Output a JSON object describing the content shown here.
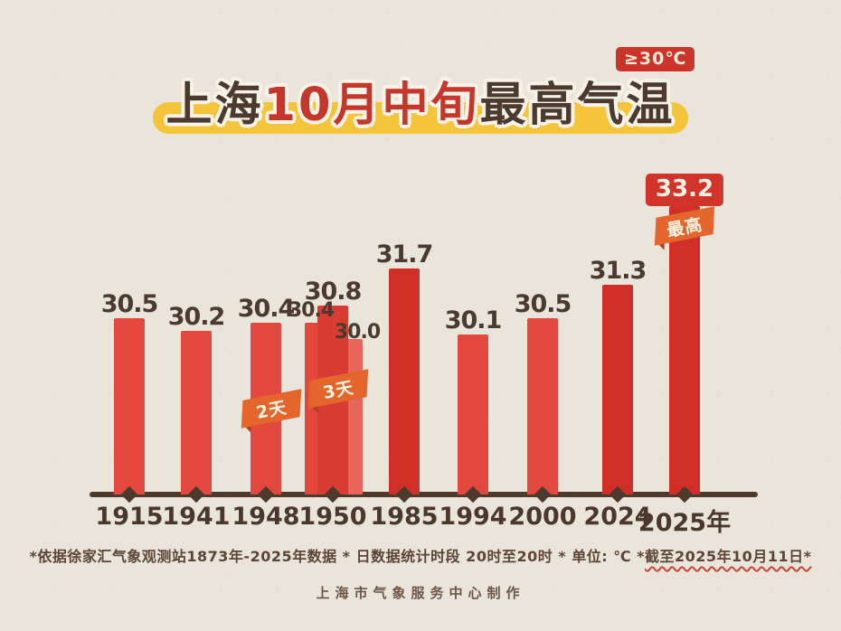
{
  "badge_top": "≥30℃",
  "title": {
    "part1": "上海",
    "part2": "10月中旬",
    "part3": "最高气温"
  },
  "colors": {
    "paper": "#eae5db",
    "bar_normal": "#e2483e",
    "bar_mid": "#d83c32",
    "bar_dark": "#d02f28",
    "bar_light": "#e8675c",
    "axis": "#4e3a2d",
    "label": "#4b3a2f",
    "flag_orange": "#e4662c",
    "title_yellow": "#f4c43a",
    "badge_red": "#cb342a",
    "boxed_label_red": "#d0342b"
  },
  "chart_data": {
    "type": "bar",
    "title": "上海10月中旬最高气温",
    "threshold_note": "≥30℃",
    "unit": "℃",
    "categories": [
      "1915",
      "1941",
      "1948",
      "1950",
      "1985",
      "1994",
      "2000",
      "2024",
      "2025年"
    ],
    "values": [
      30.5,
      30.2,
      30.4,
      30.8,
      31.7,
      30.1,
      30.5,
      31.3,
      33.2
    ],
    "ylim": [
      30.0,
      33.5
    ],
    "bars": [
      {
        "year": "1915",
        "value": 30.5,
        "label": "30.5",
        "color": "normal"
      },
      {
        "year": "1941",
        "value": 30.2,
        "label": "30.2",
        "color": "normal"
      },
      {
        "year": "1948",
        "value": 30.4,
        "label": "30.4",
        "color": "normal",
        "flag": "2天"
      },
      {
        "year": "1950",
        "value": 30.8,
        "label": "30.8",
        "color": "mid",
        "flag": "3天",
        "sub_bars": [
          {
            "value": 30.4,
            "label": "30.4",
            "side": "left",
            "color": "normal"
          },
          {
            "value": 30.0,
            "label": "30.0",
            "side": "right",
            "color": "light"
          }
        ]
      },
      {
        "year": "1985",
        "value": 31.7,
        "label": "31.7",
        "color": "dark"
      },
      {
        "year": "1994",
        "value": 30.1,
        "label": "30.1",
        "color": "normal"
      },
      {
        "year": "2000",
        "value": 30.5,
        "label": "30.5",
        "color": "normal"
      },
      {
        "year": "2024",
        "value": 31.3,
        "label": "31.3",
        "color": "dark"
      },
      {
        "year": "2025年",
        "value": 33.2,
        "label": "33.2",
        "color": "dark",
        "flag": "最高",
        "boxed_label": true
      }
    ]
  },
  "footnote": {
    "main": "*依据徐家汇气象观测站1873年-2025年数据 * 日数据统计时段 20时至20时 * 单位: ℃ *",
    "underlined": "截至2025年10月11日*"
  },
  "credit": "上海市气象服务中心制作"
}
